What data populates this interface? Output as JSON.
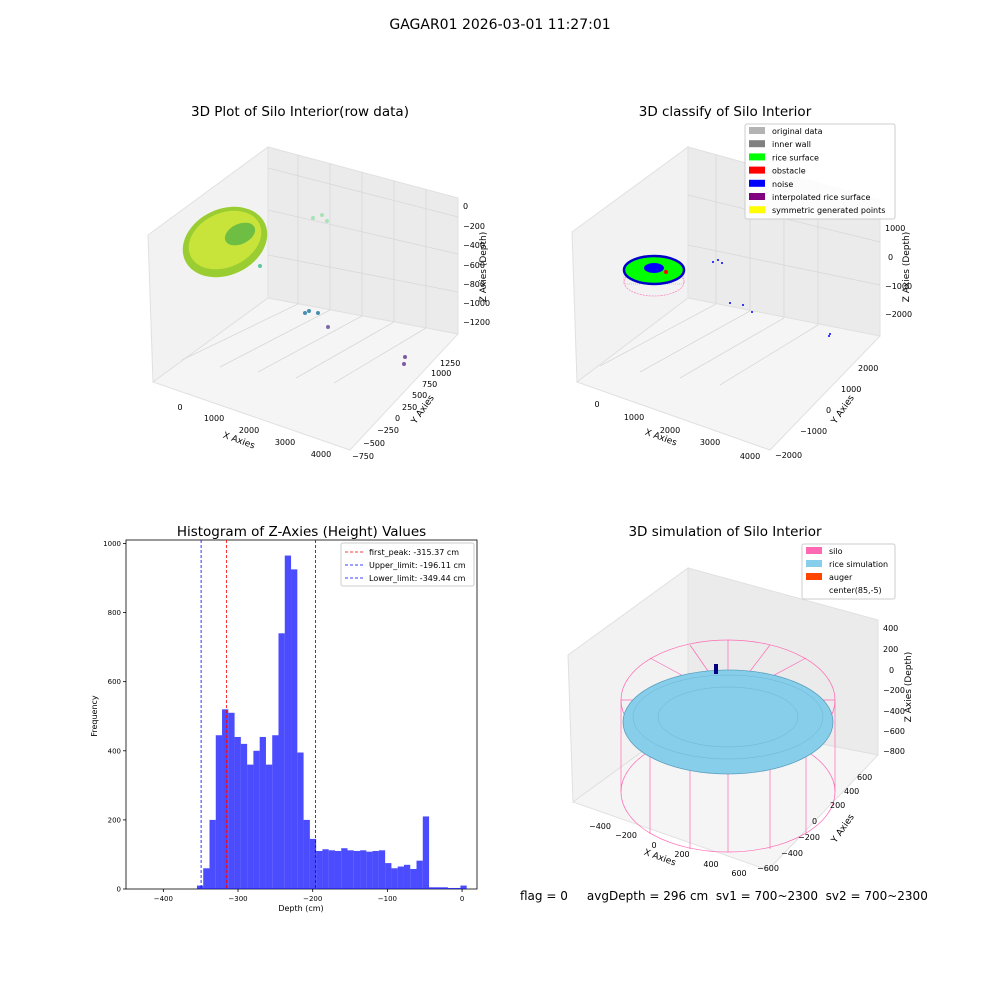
{
  "suptitle": "GAGAR01 2026-03-01 11:27:01",
  "panels": {
    "raw": {
      "title": "3D Plot of Silo Interior(row data)",
      "xlabel": "X Axies",
      "ylabel": "Y Axies",
      "zlabel": "Z Axies (Depth)",
      "xticks": [
        "0",
        "1000",
        "2000",
        "3000",
        "4000"
      ],
      "yticks": [
        "−750",
        "−500",
        "−250",
        "0",
        "250",
        "500",
        "750",
        "1000",
        "1250"
      ],
      "zticks": [
        "0",
        "−200",
        "−400",
        "−600",
        "−800",
        "−1000",
        "−1200"
      ]
    },
    "classify": {
      "title": "3D classify of Silo Interior",
      "xlabel": "X Axies",
      "ylabel": "Y Axies",
      "zlabel": "Z Axies (Depth)",
      "xticks": [
        "0",
        "1000",
        "2000",
        "3000",
        "4000"
      ],
      "yticks": [
        "−2000",
        "−1000",
        "0",
        "1000",
        "2000"
      ],
      "zticks": [
        "1000",
        "0",
        "−1000",
        "−2000"
      ],
      "legend": [
        {
          "label": "original data",
          "color": "#b3b3b3"
        },
        {
          "label": "inner wall",
          "color": "#808080"
        },
        {
          "label": "rice surface",
          "color": "#00ff00"
        },
        {
          "label": "obstacle",
          "color": "#ff0000"
        },
        {
          "label": "noise",
          "color": "#0000ff"
        },
        {
          "label": "interpolated rice surface",
          "color": "#800080"
        },
        {
          "label": "symmetric generated points",
          "color": "#ffff00"
        }
      ]
    },
    "simulation": {
      "title": "3D simulation of Silo Interior",
      "xlabel": "X Axies",
      "ylabel": "Y Axies",
      "zlabel": "Z Axies (Depth)",
      "xticks": [
        "−400",
        "−200",
        "0",
        "200",
        "400",
        "600"
      ],
      "yticks": [
        "−600",
        "−400",
        "−200",
        "0",
        "200",
        "400",
        "600"
      ],
      "zticks": [
        "400",
        "200",
        "0",
        "−200",
        "−400",
        "−600",
        "−800"
      ],
      "legend": [
        {
          "label": "silo",
          "color": "#ff69b4"
        },
        {
          "label": "rice simulation",
          "color": "#87ceeb"
        },
        {
          "label": "auger",
          "color": "#ff4500"
        },
        {
          "label": "center(85,-5)",
          "color": ""
        }
      ]
    }
  },
  "footer": "flag = 0     avgDepth = 296 cm  sv1 = 700~2300  sv2 = 700~2300",
  "chart_data": {
    "type": "bar",
    "title": "Histogram of Z-Axies (Height) Values",
    "xlabel": "Depth (cm)",
    "ylabel": "Frequency",
    "xlim": [
      -450,
      20
    ],
    "ylim": [
      0,
      1010
    ],
    "xticks": [
      -400,
      -300,
      -200,
      -100,
      0
    ],
    "yticks": [
      0,
      200,
      400,
      600,
      800,
      1000
    ],
    "xtick_labels": [
      "−400",
      "−300",
      "−200",
      "−100",
      "0"
    ],
    "ytick_labels": [
      "0",
      "200",
      "400",
      "600",
      "800",
      "1000"
    ],
    "bins_start": -355,
    "bin_width": 8.4,
    "values": [
      10,
      60,
      200,
      445,
      520,
      510,
      440,
      420,
      360,
      400,
      440,
      360,
      445,
      740,
      965,
      925,
      395,
      200,
      145,
      110,
      115,
      112,
      110,
      118,
      112,
      110,
      112,
      108,
      110,
      112,
      75,
      60,
      65,
      70,
      58,
      82,
      210,
      5,
      5,
      5,
      3,
      3,
      10
    ],
    "bar_color": "#0000ff",
    "lines": [
      {
        "label": "first_peak: -315.37 cm",
        "x": -315.37,
        "color": "#ff0000"
      },
      {
        "label": "Upper_limit: -196.11 cm",
        "x": -196.11,
        "color": "#0000ff"
      },
      {
        "label": "Lower_limit: -349.44 cm",
        "x": -349.44,
        "color": "#0000ff"
      }
    ],
    "legend_position": "top-right",
    "grid": false
  }
}
